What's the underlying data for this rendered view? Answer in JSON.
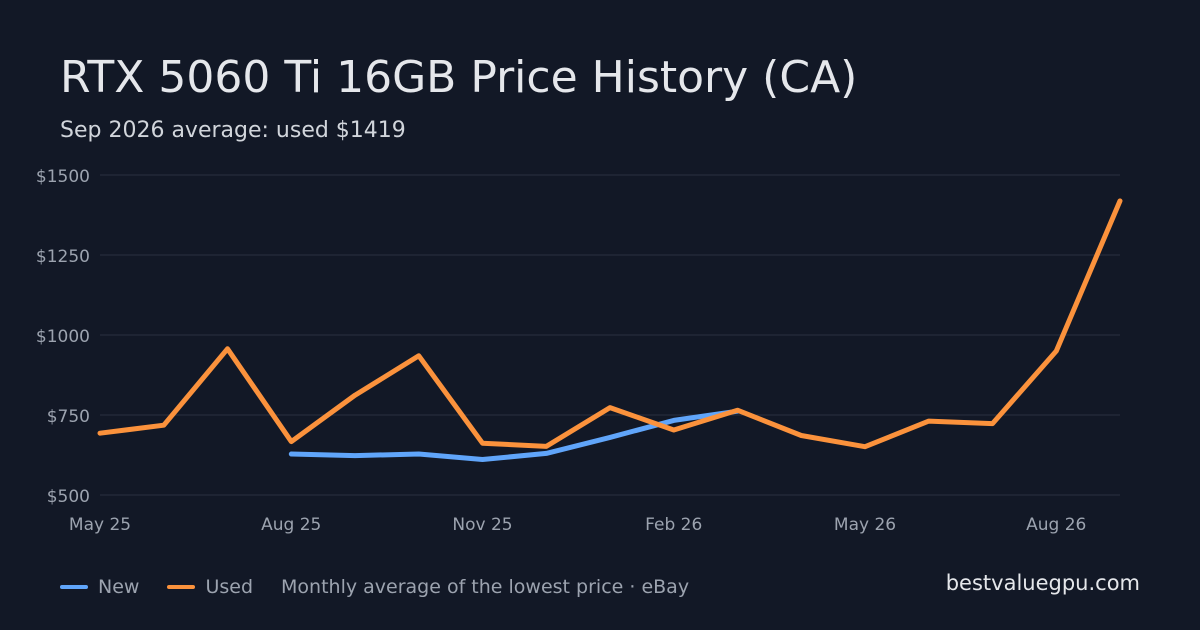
{
  "title": "RTX 5060 Ti 16GB Price History (CA)",
  "subtitle": "Sep 2026 average: used $1419",
  "legend": {
    "new_label": "New",
    "used_label": "Used",
    "note": "Monthly average of the lowest price · eBay"
  },
  "site": "bestvaluegpu.com",
  "colors": {
    "background": "#121826",
    "new": "#60a5fa",
    "used": "#fb923c",
    "grid": "#2a3140",
    "axis_text": "#9ca3af"
  },
  "chart_data": {
    "type": "line",
    "x": [
      "May 25",
      "Jun 25",
      "Jul 25",
      "Aug 25",
      "Sep 25",
      "Oct 25",
      "Nov 25",
      "Dec 25",
      "Jan 26",
      "Feb 26",
      "Mar 26",
      "Apr 26",
      "May 26",
      "Jun 26",
      "Jul 26",
      "Aug 26",
      "Sep 26"
    ],
    "x_tick_labels": [
      "May 25",
      "Aug 25",
      "Nov 25",
      "Feb 26",
      "May 26",
      "Aug 26"
    ],
    "y_tick_labels": [
      "$500",
      "$750",
      "$1000",
      "$1250",
      "$1500"
    ],
    "y_ticks": [
      500,
      750,
      1000,
      1250,
      1500
    ],
    "ylim": [
      500,
      1500
    ],
    "grid": true,
    "legend_position": "bottom-left",
    "series": [
      {
        "name": "New",
        "color": "#60a5fa",
        "values": [
          null,
          null,
          null,
          628,
          623,
          628,
          611,
          630,
          680,
          733,
          762,
          null,
          null,
          null,
          null,
          null,
          null
        ]
      },
      {
        "name": "Used",
        "color": "#fb923c",
        "values": [
          693,
          718,
          957,
          667,
          812,
          935,
          662,
          652,
          773,
          703,
          765,
          686,
          651,
          731,
          723,
          950,
          1419
        ]
      }
    ]
  }
}
